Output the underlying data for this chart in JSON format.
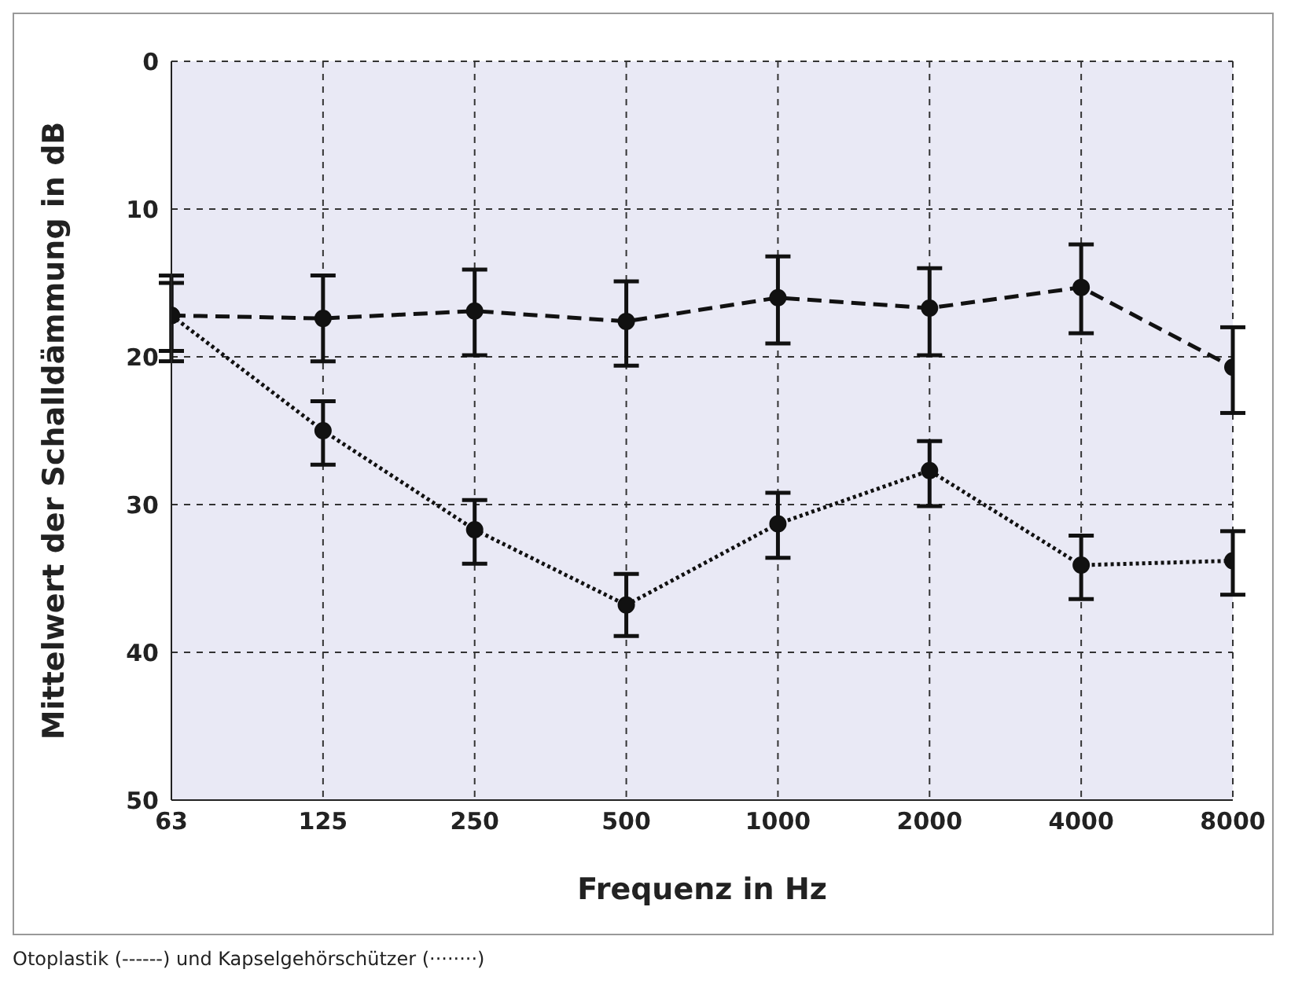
{
  "chart_data": {
    "type": "line",
    "xlabel": "Frequenz in Hz",
    "ylabel": "Mittelwert der Schalldämmung in dB",
    "categories": [
      "63",
      "125",
      "250",
      "500",
      "1000",
      "2000",
      "4000",
      "8000"
    ],
    "ylim": [
      50,
      0
    ],
    "yticks": [
      0,
      10,
      20,
      30,
      40,
      50
    ],
    "grid": true,
    "marker": "circle",
    "series": [
      {
        "color": "#111111",
        "line_style": "dashed",
        "values": [
          17.2,
          17.4,
          16.9,
          17.6,
          16.0,
          16.7,
          15.3,
          20.7
        ],
        "errors": [
          [
            14.5,
            20.3
          ],
          [
            14.5,
            20.3
          ],
          [
            14.1,
            19.9
          ],
          [
            14.9,
            20.6
          ],
          [
            13.2,
            19.1
          ],
          [
            14.0,
            19.9
          ],
          [
            12.4,
            18.4
          ],
          [
            18.0,
            23.8
          ]
        ]
      },
      {
        "color": "#111111",
        "line_style": "dotted",
        "values": [
          17.2,
          25.0,
          31.7,
          36.8,
          31.3,
          27.7,
          34.1,
          33.8
        ],
        "errors": [
          [
            15.0,
            19.6
          ],
          [
            23.0,
            27.3
          ],
          [
            29.7,
            34.0
          ],
          [
            34.7,
            38.9
          ],
          [
            29.2,
            33.6
          ],
          [
            25.7,
            30.1
          ],
          [
            32.1,
            36.4
          ],
          [
            31.8,
            36.1
          ]
        ]
      }
    ],
    "annotations": [
      "Otoplastik (------) und Kapselgehörschützer (········)"
    ]
  }
}
